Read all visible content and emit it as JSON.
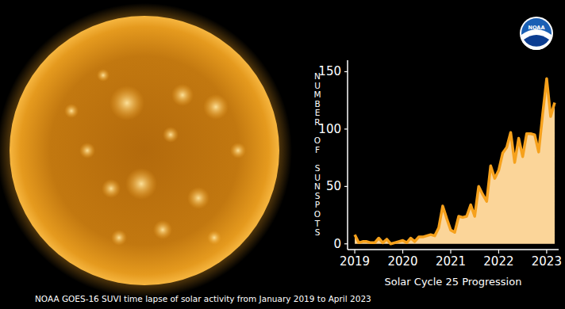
{
  "chart_data": {
    "type": "area",
    "x": [
      2019,
      2019.083,
      2019.167,
      2019.25,
      2019.333,
      2019.417,
      2019.5,
      2019.583,
      2019.667,
      2019.75,
      2019.833,
      2019.917,
      2020,
      2020.083,
      2020.167,
      2020.25,
      2020.333,
      2020.417,
      2020.5,
      2020.583,
      2020.667,
      2020.75,
      2020.833,
      2020.917,
      2021,
      2021.083,
      2021.167,
      2021.25,
      2021.333,
      2021.417,
      2021.5,
      2021.583,
      2021.667,
      2021.75,
      2021.833,
      2021.917,
      2022,
      2022.083,
      2022.167,
      2022.25,
      2022.333,
      2022.417,
      2022.5,
      2022.583,
      2022.667,
      2022.75,
      2022.833,
      2022.917,
      2023,
      2023.083,
      2023.167
    ],
    "values": [
      8,
      1,
      2,
      2,
      1,
      1,
      5,
      1,
      4,
      0,
      1,
      2,
      3,
      1,
      5,
      2,
      6,
      6,
      7,
      8,
      7,
      14,
      33,
      22,
      12,
      10,
      24,
      23,
      24,
      34,
      24,
      50,
      43,
      37,
      68,
      57,
      64,
      79,
      84,
      97,
      71,
      92,
      76,
      96,
      96,
      95,
      80,
      113,
      144,
      111,
      123
    ],
    "color": "#f6a11c",
    "xlim": [
      2018.85,
      2023.25
    ],
    "xticks": [
      2019,
      2020,
      2021,
      2022,
      2023
    ],
    "ylim": [
      -5,
      160
    ],
    "yticks": [
      0,
      50,
      100,
      150
    ],
    "grid": false,
    "x_label": "Solar Cycle 25 Progression",
    "y_label": "NUMBER OF SUNSPOTS",
    "caption": "NOAA GOES-16 SUVI time lapse of solar activity from January 2019 to April 2023",
    "logo_text": "NOAA"
  }
}
